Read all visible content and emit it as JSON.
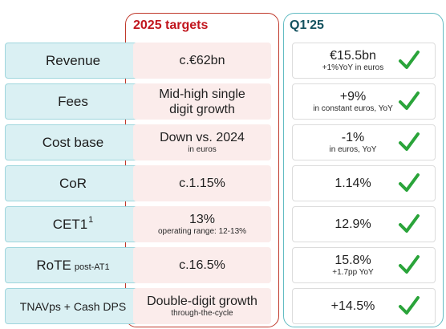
{
  "headers": {
    "targets": "2025 targets",
    "q1": "Q1'25"
  },
  "colors": {
    "targets_border": "#c0392b",
    "targets_title": "#c1161e",
    "q1_border": "#63bcc3",
    "q1_title": "#14525f",
    "label_fill": "#daf0f3",
    "target_fill": "#fbeceb",
    "check": "#2aa43a"
  },
  "rows": [
    {
      "label": "Revenue",
      "target": "c.€62bn",
      "target_sub": "",
      "actual": "€15.5bn",
      "actual_sub": "+1%YoY in euros",
      "status_icon": "check-mark-icon"
    },
    {
      "label": "Fees",
      "target": "Mid-high single digit growth",
      "target_sub": "",
      "actual": "+9%",
      "actual_sub": "in constant euros, YoY",
      "status_icon": "check-mark-icon"
    },
    {
      "label": "Cost base",
      "target": "Down vs. 2024",
      "target_sub": "in euros",
      "actual": "-1%",
      "actual_sub": "in euros, YoY",
      "status_icon": "check-mark-icon"
    },
    {
      "label": "CoR",
      "target": "c.1.15%",
      "target_sub": "",
      "actual": "1.14%",
      "actual_sub": "",
      "status_icon": "check-mark-icon"
    },
    {
      "label": "CET1",
      "label_sup": "1",
      "target": "13%",
      "target_sub": "operating range: 12-13%",
      "actual": "12.9%",
      "actual_sub": "",
      "status_icon": "check-mark-icon"
    },
    {
      "label": "RoTE",
      "label_suffix": "post-AT1",
      "target": "c.16.5%",
      "target_sub": "",
      "actual": "15.8%",
      "actual_sub": "+1.7pp YoY",
      "status_icon": "check-mark-icon"
    },
    {
      "label": "TNAVps + Cash DPS",
      "target": "Double-digit growth",
      "target_sub": "through-the-cycle",
      "actual": "+14.5%",
      "actual_sub": "",
      "status_icon": "check-mark-icon"
    }
  ]
}
